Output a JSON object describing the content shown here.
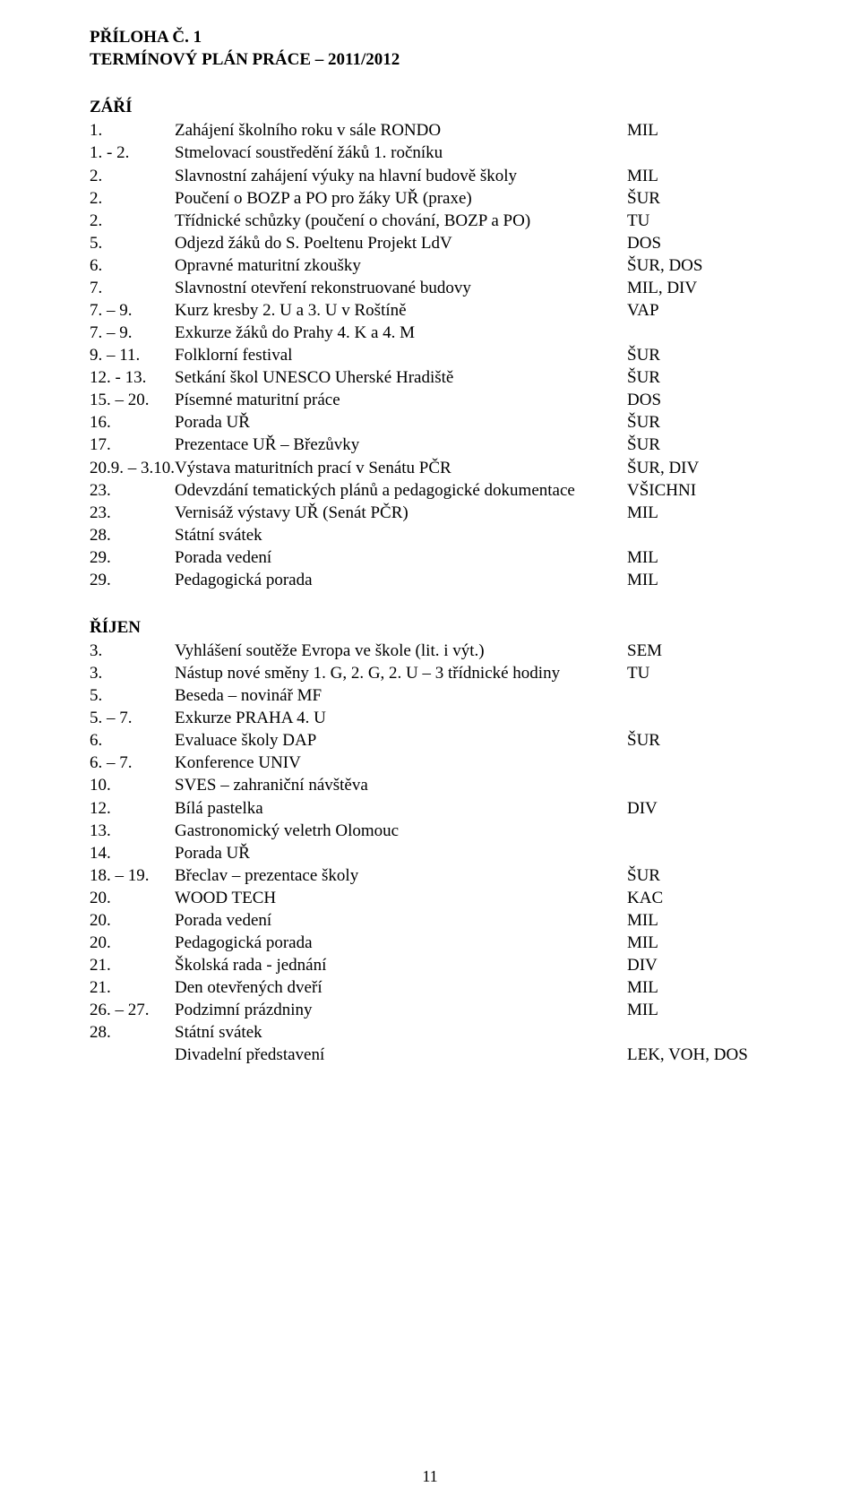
{
  "header": {
    "line1": "PŘÍLOHA Č. 1",
    "line2": "TERMÍNOVÝ PLÁN PRÁCE – 2011/2012"
  },
  "sections": [
    {
      "title": "ZÁŘÍ",
      "rows": [
        {
          "num": "1.",
          "desc": "Zahájení školního roku v sále RONDO",
          "code": "MIL"
        },
        {
          "num": "1. - 2.",
          "desc": "Stmelovací soustředění žáků 1. ročníku",
          "code": ""
        },
        {
          "num": "2.",
          "desc": "Slavnostní zahájení výuky na hlavní budově školy",
          "code": "MIL"
        },
        {
          "num": "2.",
          "desc": "Poučení o BOZP a PO pro žáky UŘ (praxe)",
          "code": "ŠUR"
        },
        {
          "num": "2.",
          "desc": "Třídnické schůzky (poučení o chování, BOZP a PO)",
          "code": "TU"
        },
        {
          "num": "5.",
          "desc": "Odjezd žáků do S. Poeltenu Projekt LdV",
          "code": "DOS"
        },
        {
          "num": "6.",
          "desc": "Opravné maturitní zkoušky",
          "code": "ŠUR, DOS"
        },
        {
          "num": "7.",
          "desc": "Slavnostní otevření rekonstruované budovy",
          "code": "MIL, DIV"
        },
        {
          "num": "7. – 9.",
          "desc": "Kurz kresby 2. U a 3. U v Roštíně",
          "code": "VAP"
        },
        {
          "num": "7. – 9.",
          "desc": "Exkurze žáků do Prahy 4. K a 4. M",
          "code": ""
        },
        {
          "num": "9. – 11.",
          "desc": "Folklorní festival",
          "code": "ŠUR"
        },
        {
          "num": "12. - 13.",
          "desc": "Setkání škol UNESCO Uherské Hradiště",
          "code": "ŠUR"
        },
        {
          "num": "15. – 20.",
          "desc": "Písemné maturitní práce",
          "code": "DOS"
        },
        {
          "num": "16.",
          "desc": "Porada UŘ",
          "code": "ŠUR"
        },
        {
          "num": "17.",
          "desc": "Prezentace UŘ – Březůvky",
          "code": "ŠUR"
        },
        {
          "num": "20.9. – 3.10.",
          "desc": "Výstava maturitních prací v Senátu PČR",
          "code": "ŠUR, DIV"
        },
        {
          "num": "23.",
          "desc": "Odevzdání tematických plánů a pedagogické dokumentace",
          "code": "VŠICHNI"
        },
        {
          "num": "23.",
          "desc": "Vernisáž výstavy UŘ (Senát PČR)",
          "code": "MIL"
        },
        {
          "num": "28.",
          "desc": "Státní svátek",
          "code": ""
        },
        {
          "num": "29.",
          "desc": "Porada vedení",
          "code": "MIL"
        },
        {
          "num": "29.",
          "desc": "Pedagogická porada",
          "code": "MIL"
        }
      ]
    },
    {
      "title": "ŘÍJEN",
      "rows": [
        {
          "num": "3.",
          "desc": "Vyhlášení soutěže Evropa ve škole (lit. i výt.)",
          "code": "SEM"
        },
        {
          "num": "3.",
          "desc": "Nástup nové směny 1. G, 2. G, 2. U – 3 třídnické hodiny",
          "code": "TU"
        },
        {
          "num": "5.",
          "desc": "Beseda – novinář MF",
          "code": ""
        },
        {
          "num": "5. – 7.",
          "desc": "Exkurze PRAHA 4. U",
          "code": ""
        },
        {
          "num": "6.",
          "desc": "Evaluace školy DAP",
          "code": "ŠUR"
        },
        {
          "num": "6. – 7.",
          "desc": "Konference UNIV",
          "code": ""
        },
        {
          "num": "10.",
          "desc": "SVES – zahraniční návštěva",
          "code": ""
        },
        {
          "num": "12.",
          "desc": "Bílá pastelka",
          "code": "DIV"
        },
        {
          "num": "13.",
          "desc": "Gastronomický veletrh Olomouc",
          "code": ""
        },
        {
          "num": "14.",
          "desc": "Porada UŘ",
          "code": ""
        },
        {
          "num": "18. – 19.",
          "desc": "Břeclav – prezentace školy",
          "code": "ŠUR"
        },
        {
          "num": "20.",
          "desc": "WOOD TECH",
          "code": "KAC"
        },
        {
          "num": "20.",
          "desc": "Porada vedení",
          "code": "MIL"
        },
        {
          "num": "20.",
          "desc": "Pedagogická porada",
          "code": "MIL"
        },
        {
          "num": "21.",
          "desc": "Školská rada  - jednání",
          "code": "DIV"
        },
        {
          "num": "21.",
          "desc": "Den otevřených dveří",
          "code": "MIL"
        },
        {
          "num": "26. – 27.",
          "desc": "Podzimní prázdniny",
          "code": "MIL"
        },
        {
          "num": "28.",
          "desc": "Státní svátek",
          "code": ""
        },
        {
          "num": "",
          "desc": "Divadelní představení",
          "code": "LEK, VOH, DOS"
        }
      ]
    }
  ],
  "pageNumber": "11"
}
